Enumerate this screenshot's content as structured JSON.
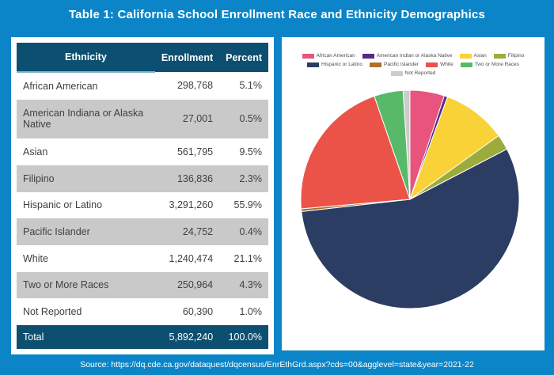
{
  "title": "Table 1: California School Enrollment Race and Ethnicity Demographics",
  "source": "Source: https://dq.cde.ca.gov/dataquest/dqcensus/EnrEthGrd.aspx?cds=00&agglevel=state&year=2021-22",
  "colors": {
    "background": "#0b85c8",
    "header_teal": "#0d4f70",
    "row_gray": "#c9c9c9",
    "table_text": "#404040"
  },
  "table": {
    "headers": [
      "Ethnicity",
      "Enrollment",
      "Percent"
    ],
    "rows": [
      {
        "ethnicity": "African American",
        "enrollment": "298,768",
        "percent": "5.1%"
      },
      {
        "ethnicity": "American Indiana or Alaska Native",
        "enrollment": "27,001",
        "percent": "0.5%"
      },
      {
        "ethnicity": "Asian",
        "enrollment": "561,795",
        "percent": "9.5%"
      },
      {
        "ethnicity": "Filipino",
        "enrollment": "136,836",
        "percent": "2.3%"
      },
      {
        "ethnicity": "Hispanic or Latino",
        "enrollment": "3,291,260",
        "percent": "55.9%"
      },
      {
        "ethnicity": "Pacific Islander",
        "enrollment": "24,752",
        "percent": "0.4%"
      },
      {
        "ethnicity": "White",
        "enrollment": "1,240,474",
        "percent": "21.1%"
      },
      {
        "ethnicity": "Two or More Races",
        "enrollment": "250,964",
        "percent": "4.3%"
      },
      {
        "ethnicity": "Not Reported",
        "enrollment": "60,390",
        "percent": "1.0%"
      }
    ],
    "total": {
      "ethnicity": "Total",
      "enrollment": "5,892,240",
      "percent": "100.0%"
    }
  },
  "chart_data": {
    "type": "pie",
    "start_angle_deg": 0,
    "direction": "clockwise",
    "legend_position": "top",
    "legend_rows": [
      4,
      4,
      1
    ],
    "slices": [
      {
        "label": "African American",
        "value": 5.1,
        "color": "#e8547e"
      },
      {
        "label": "American Indian or Alaska Native",
        "value": 0.5,
        "color": "#562a82"
      },
      {
        "label": "Asian",
        "value": 9.5,
        "color": "#f9d237"
      },
      {
        "label": "Filipino",
        "value": 2.3,
        "color": "#9cab3c"
      },
      {
        "label": "Hispanic or Latino",
        "value": 55.9,
        "color": "#2b3d63"
      },
      {
        "label": "Pacific Islander",
        "value": 0.4,
        "color": "#b06f2d"
      },
      {
        "label": "White",
        "value": 21.1,
        "color": "#eb5349"
      },
      {
        "label": "Two or More Races",
        "value": 4.3,
        "color": "#58ba68"
      },
      {
        "label": "Not Reported",
        "value": 1.0,
        "color": "#cccccc"
      }
    ]
  }
}
